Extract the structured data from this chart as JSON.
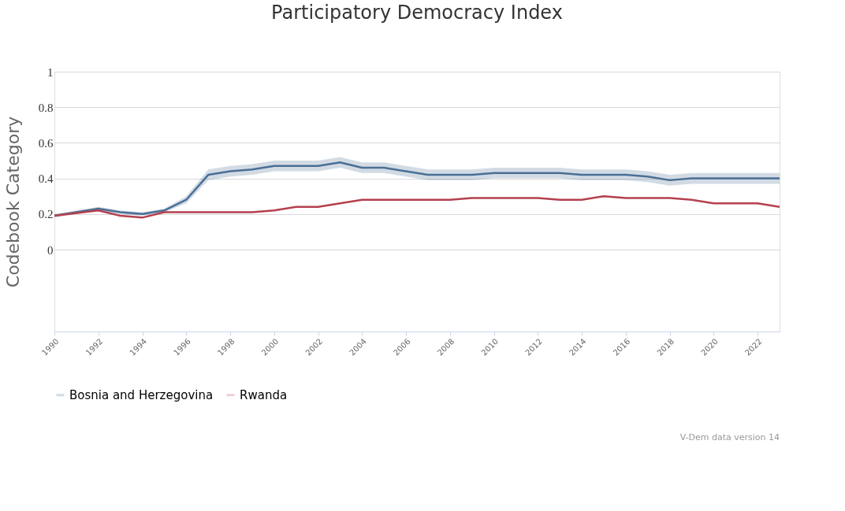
{
  "chart_data": {
    "type": "line",
    "title": "Participatory Democracy Index",
    "ylabel": "Codebook Category",
    "x": [
      1990,
      1992,
      1993,
      1994,
      1995,
      1996,
      1997,
      1998,
      1999,
      2000,
      2001,
      2002,
      2003,
      2004,
      2005,
      2006,
      2007,
      2008,
      2009,
      2010,
      2011,
      2012,
      2013,
      2014,
      2015,
      2016,
      2017,
      2018,
      2019,
      2020,
      2021,
      2022,
      2023
    ],
    "series": [
      {
        "name": "Bosnia and Herzegovina",
        "color": "#4a6f95",
        "values": [
          0.19,
          0.23,
          0.21,
          0.2,
          0.22,
          0.28,
          0.42,
          0.44,
          0.45,
          0.47,
          0.47,
          0.47,
          0.49,
          0.46,
          0.46,
          0.44,
          0.42,
          0.42,
          0.42,
          0.43,
          0.43,
          0.43,
          0.43,
          0.42,
          0.42,
          0.42,
          0.41,
          0.39,
          0.4,
          0.4,
          0.4,
          0.4,
          0.4
        ],
        "lower": [
          0.18,
          0.22,
          0.2,
          0.19,
          0.21,
          0.26,
          0.39,
          0.41,
          0.42,
          0.44,
          0.44,
          0.44,
          0.46,
          0.43,
          0.43,
          0.41,
          0.39,
          0.39,
          0.39,
          0.4,
          0.4,
          0.4,
          0.4,
          0.39,
          0.39,
          0.39,
          0.38,
          0.36,
          0.37,
          0.37,
          0.37,
          0.37,
          0.37
        ],
        "upper": [
          0.2,
          0.24,
          0.22,
          0.21,
          0.23,
          0.3,
          0.45,
          0.47,
          0.48,
          0.5,
          0.5,
          0.5,
          0.52,
          0.49,
          0.49,
          0.47,
          0.45,
          0.45,
          0.45,
          0.46,
          0.46,
          0.46,
          0.46,
          0.45,
          0.45,
          0.45,
          0.44,
          0.42,
          0.43,
          0.43,
          0.43,
          0.43,
          0.43
        ]
      },
      {
        "name": "Rwanda",
        "color": "#b5404f",
        "values": [
          0.19,
          0.22,
          0.19,
          0.18,
          0.21,
          0.21,
          0.21,
          0.21,
          0.21,
          0.22,
          0.24,
          0.24,
          0.26,
          0.28,
          0.28,
          0.28,
          0.28,
          0.28,
          0.29,
          0.29,
          0.29,
          0.29,
          0.28,
          0.28,
          0.3,
          0.29,
          0.29,
          0.29,
          0.28,
          0.26,
          0.26,
          0.26,
          0.24
        ]
      }
    ],
    "xlim": [
      1990,
      2023
    ],
    "xticks": [
      1990,
      1992,
      1994,
      1996,
      1998,
      2000,
      2002,
      2004,
      2006,
      2008,
      2010,
      2012,
      2014,
      2016,
      2018,
      2020,
      2022
    ],
    "ylim": [
      -0.46,
      1
    ],
    "yticks": [
      0,
      0.2,
      0.4,
      0.6,
      0.8,
      1
    ],
    "grid": "y",
    "legend": "bottom",
    "marker": "none",
    "line_style": "solid",
    "annotations": [
      "V-Dem data version 14"
    ]
  }
}
